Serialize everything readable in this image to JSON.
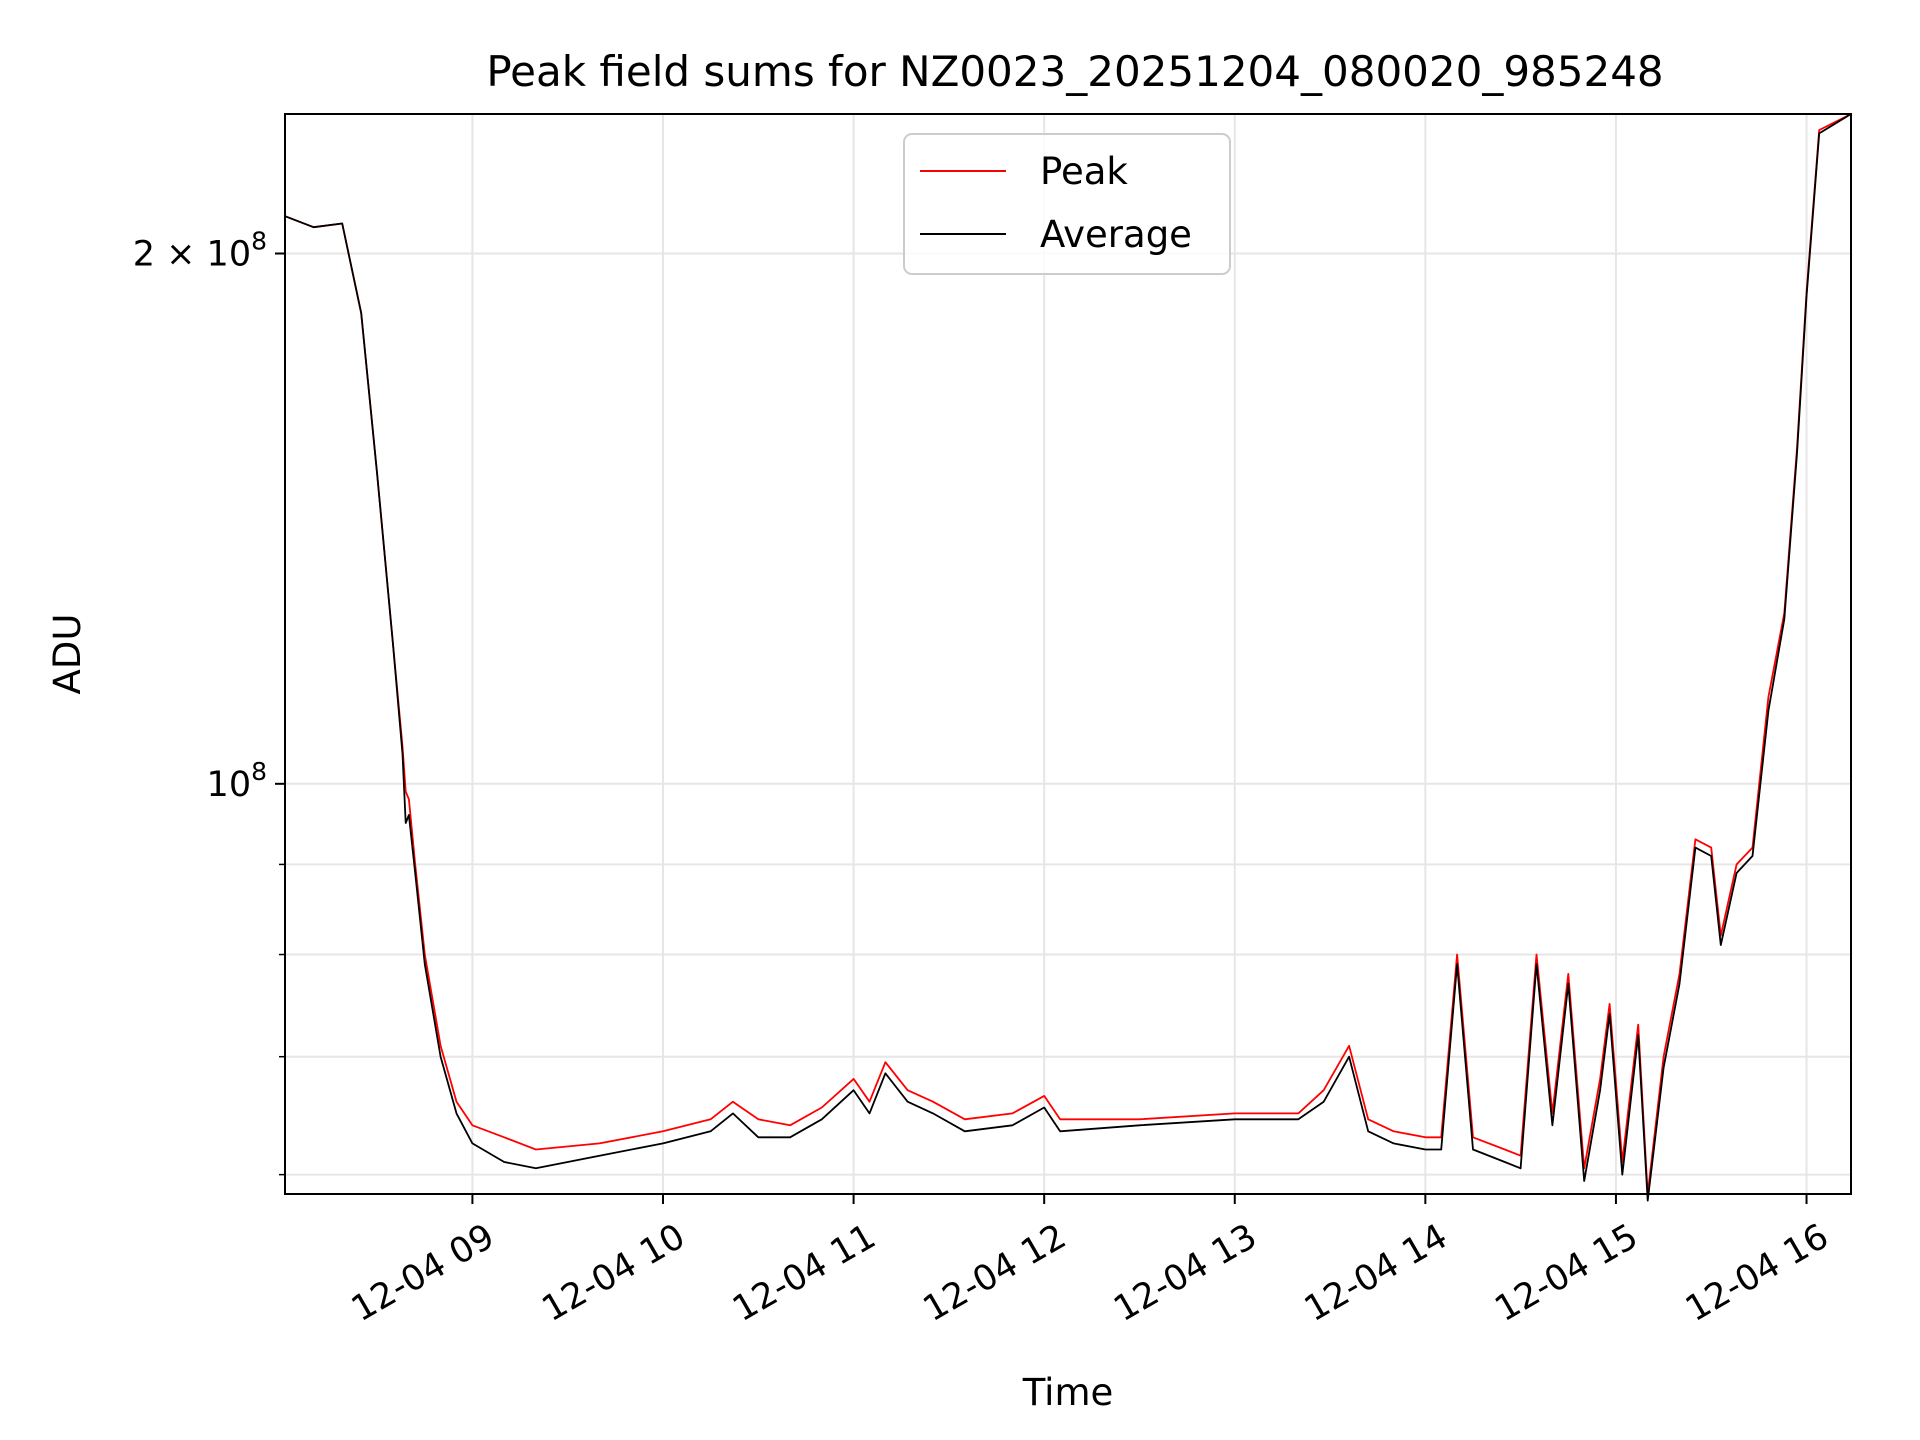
{
  "chart_data": {
    "type": "line",
    "title": "Peak field sums for NZ0023_20251204_080020_985248",
    "xlabel": "Time",
    "ylabel": "ADU",
    "y_scale": "log",
    "xlim": [
      "2025-12-04 08:01",
      "2025-12-04 16:14"
    ],
    "ylim": [
      58500000,
      240000000
    ],
    "grid": true,
    "legend_placement": "upper center",
    "x_ticks": [
      {
        "value": "2025-12-04 09:00",
        "label": "12-04 09"
      },
      {
        "value": "2025-12-04 10:00",
        "label": "12-04 10"
      },
      {
        "value": "2025-12-04 11:00",
        "label": "12-04 11"
      },
      {
        "value": "2025-12-04 12:00",
        "label": "12-04 12"
      },
      {
        "value": "2025-12-04 13:00",
        "label": "12-04 13"
      },
      {
        "value": "2025-12-04 14:00",
        "label": "12-04 14"
      },
      {
        "value": "2025-12-04 15:00",
        "label": "12-04 15"
      },
      {
        "value": "2025-12-04 16:00",
        "label": "12-04 16"
      }
    ],
    "y_major_ticks": [
      {
        "value": 100000000,
        "label_base": "10",
        "label_exp": "8"
      },
      {
        "value": 200000000,
        "label_base": "2 × 10",
        "label_exp": "8"
      }
    ],
    "y_minor_ticks": [
      60000000,
      70000000,
      80000000,
      90000000
    ],
    "series": [
      {
        "name": "Peak",
        "color": "#ff0000",
        "points": [
          [
            "2025-12-04 08:01",
            210000000
          ],
          [
            "2025-12-04 08:10",
            207000000
          ],
          [
            "2025-12-04 08:19",
            208000000
          ],
          [
            "2025-12-04 08:25",
            185000000
          ],
          [
            "2025-12-04 08:30",
            150000000
          ],
          [
            "2025-12-04 08:35",
            120000000
          ],
          [
            "2025-12-04 08:38",
            105000000
          ],
          [
            "2025-12-04 08:39",
            99000000
          ],
          [
            "2025-12-04 08:40",
            98000000
          ],
          [
            "2025-12-04 08:42",
            90000000
          ],
          [
            "2025-12-04 08:45",
            80000000
          ],
          [
            "2025-12-04 08:50",
            71000000
          ],
          [
            "2025-12-04 08:55",
            66000000
          ],
          [
            "2025-12-04 09:00",
            64000000
          ],
          [
            "2025-12-04 09:10",
            63000000
          ],
          [
            "2025-12-04 09:20",
            62000000
          ],
          [
            "2025-12-04 09:40",
            62500000
          ],
          [
            "2025-12-04 10:00",
            63500000
          ],
          [
            "2025-12-04 10:15",
            64500000
          ],
          [
            "2025-12-04 10:22",
            66000000
          ],
          [
            "2025-12-04 10:30",
            64500000
          ],
          [
            "2025-12-04 10:40",
            64000000
          ],
          [
            "2025-12-04 10:50",
            65500000
          ],
          [
            "2025-12-04 11:00",
            68000000
          ],
          [
            "2025-12-04 11:05",
            66000000
          ],
          [
            "2025-12-04 11:10",
            69500000
          ],
          [
            "2025-12-04 11:17",
            67000000
          ],
          [
            "2025-12-04 11:25",
            66000000
          ],
          [
            "2025-12-04 11:35",
            64500000
          ],
          [
            "2025-12-04 11:50",
            65000000
          ],
          [
            "2025-12-04 12:00",
            66500000
          ],
          [
            "2025-12-04 12:05",
            64500000
          ],
          [
            "2025-12-04 12:30",
            64500000
          ],
          [
            "2025-12-04 13:00",
            65000000
          ],
          [
            "2025-12-04 13:20",
            65000000
          ],
          [
            "2025-12-04 13:28",
            67000000
          ],
          [
            "2025-12-04 13:36",
            71000000
          ],
          [
            "2025-12-04 13:42",
            64500000
          ],
          [
            "2025-12-04 13:50",
            63500000
          ],
          [
            "2025-12-04 14:00",
            63000000
          ],
          [
            "2025-12-04 14:05",
            63000000
          ],
          [
            "2025-12-04 14:10",
            80000000
          ],
          [
            "2025-12-04 14:15",
            63000000
          ],
          [
            "2025-12-04 14:25",
            62000000
          ],
          [
            "2025-12-04 14:30",
            61500000
          ],
          [
            "2025-12-04 14:35",
            80000000
          ],
          [
            "2025-12-04 14:40",
            65000000
          ],
          [
            "2025-12-04 14:45",
            78000000
          ],
          [
            "2025-12-04 14:50",
            60500000
          ],
          [
            "2025-12-04 14:55",
            68000000
          ],
          [
            "2025-12-04 14:58",
            75000000
          ],
          [
            "2025-12-04 15:02",
            61000000
          ],
          [
            "2025-12-04 15:07",
            73000000
          ],
          [
            "2025-12-04 15:10",
            58500000
          ],
          [
            "2025-12-04 15:15",
            70000000
          ],
          [
            "2025-12-04 15:20",
            78000000
          ],
          [
            "2025-12-04 15:25",
            93000000
          ],
          [
            "2025-12-04 15:30",
            92000000
          ],
          [
            "2025-12-04 15:33",
            82000000
          ],
          [
            "2025-12-04 15:38",
            90000000
          ],
          [
            "2025-12-04 15:43",
            92000000
          ],
          [
            "2025-12-04 15:48",
            112000000
          ],
          [
            "2025-12-04 15:53",
            125000000
          ],
          [
            "2025-12-04 15:57",
            155000000
          ],
          [
            "2025-12-04 16:00",
            190000000
          ],
          [
            "2025-12-04 16:04",
            235000000
          ],
          [
            "2025-12-04 16:14",
            240000000
          ]
        ]
      },
      {
        "name": "Average",
        "color": "#000000",
        "points": [
          [
            "2025-12-04 08:01",
            210000000
          ],
          [
            "2025-12-04 08:10",
            207000000
          ],
          [
            "2025-12-04 08:19",
            208000000
          ],
          [
            "2025-12-04 08:25",
            185000000
          ],
          [
            "2025-12-04 08:30",
            150000000
          ],
          [
            "2025-12-04 08:35",
            120000000
          ],
          [
            "2025-12-04 08:38",
            104000000
          ],
          [
            "2025-12-04 08:39",
            95000000
          ],
          [
            "2025-12-04 08:40",
            96000000
          ],
          [
            "2025-12-04 08:42",
            89000000
          ],
          [
            "2025-12-04 08:45",
            79000000
          ],
          [
            "2025-12-04 08:50",
            70000000
          ],
          [
            "2025-12-04 08:55",
            65000000
          ],
          [
            "2025-12-04 09:00",
            62500000
          ],
          [
            "2025-12-04 09:10",
            61000000
          ],
          [
            "2025-12-04 09:20",
            60500000
          ],
          [
            "2025-12-04 09:40",
            61500000
          ],
          [
            "2025-12-04 10:00",
            62500000
          ],
          [
            "2025-12-04 10:15",
            63500000
          ],
          [
            "2025-12-04 10:22",
            65000000
          ],
          [
            "2025-12-04 10:30",
            63000000
          ],
          [
            "2025-12-04 10:40",
            63000000
          ],
          [
            "2025-12-04 10:50",
            64500000
          ],
          [
            "2025-12-04 11:00",
            67000000
          ],
          [
            "2025-12-04 11:05",
            65000000
          ],
          [
            "2025-12-04 11:10",
            68500000
          ],
          [
            "2025-12-04 11:17",
            66000000
          ],
          [
            "2025-12-04 11:25",
            65000000
          ],
          [
            "2025-12-04 11:35",
            63500000
          ],
          [
            "2025-12-04 11:50",
            64000000
          ],
          [
            "2025-12-04 12:00",
            65500000
          ],
          [
            "2025-12-04 12:05",
            63500000
          ],
          [
            "2025-12-04 12:30",
            64000000
          ],
          [
            "2025-12-04 13:00",
            64500000
          ],
          [
            "2025-12-04 13:20",
            64500000
          ],
          [
            "2025-12-04 13:28",
            66000000
          ],
          [
            "2025-12-04 13:36",
            70000000
          ],
          [
            "2025-12-04 13:42",
            63500000
          ],
          [
            "2025-12-04 13:50",
            62500000
          ],
          [
            "2025-12-04 14:00",
            62000000
          ],
          [
            "2025-12-04 14:05",
            62000000
          ],
          [
            "2025-12-04 14:10",
            79000000
          ],
          [
            "2025-12-04 14:15",
            62000000
          ],
          [
            "2025-12-04 14:25",
            61000000
          ],
          [
            "2025-12-04 14:30",
            60500000
          ],
          [
            "2025-12-04 14:35",
            79000000
          ],
          [
            "2025-12-04 14:40",
            64000000
          ],
          [
            "2025-12-04 14:45",
            77000000
          ],
          [
            "2025-12-04 14:50",
            59500000
          ],
          [
            "2025-12-04 14:55",
            67000000
          ],
          [
            "2025-12-04 14:58",
            74000000
          ],
          [
            "2025-12-04 15:02",
            60000000
          ],
          [
            "2025-12-04 15:07",
            72000000
          ],
          [
            "2025-12-04 15:10",
            58000000
          ],
          [
            "2025-12-04 15:15",
            69000000
          ],
          [
            "2025-12-04 15:20",
            77000000
          ],
          [
            "2025-12-04 15:25",
            92000000
          ],
          [
            "2025-12-04 15:30",
            91000000
          ],
          [
            "2025-12-04 15:33",
            81000000
          ],
          [
            "2025-12-04 15:38",
            89000000
          ],
          [
            "2025-12-04 15:43",
            91000000
          ],
          [
            "2025-12-04 15:48",
            110000000
          ],
          [
            "2025-12-04 15:53",
            124000000
          ],
          [
            "2025-12-04 15:57",
            154000000
          ],
          [
            "2025-12-04 16:00",
            189000000
          ],
          [
            "2025-12-04 16:04",
            234000000
          ],
          [
            "2025-12-04 16:14",
            240000000
          ]
        ]
      }
    ]
  }
}
